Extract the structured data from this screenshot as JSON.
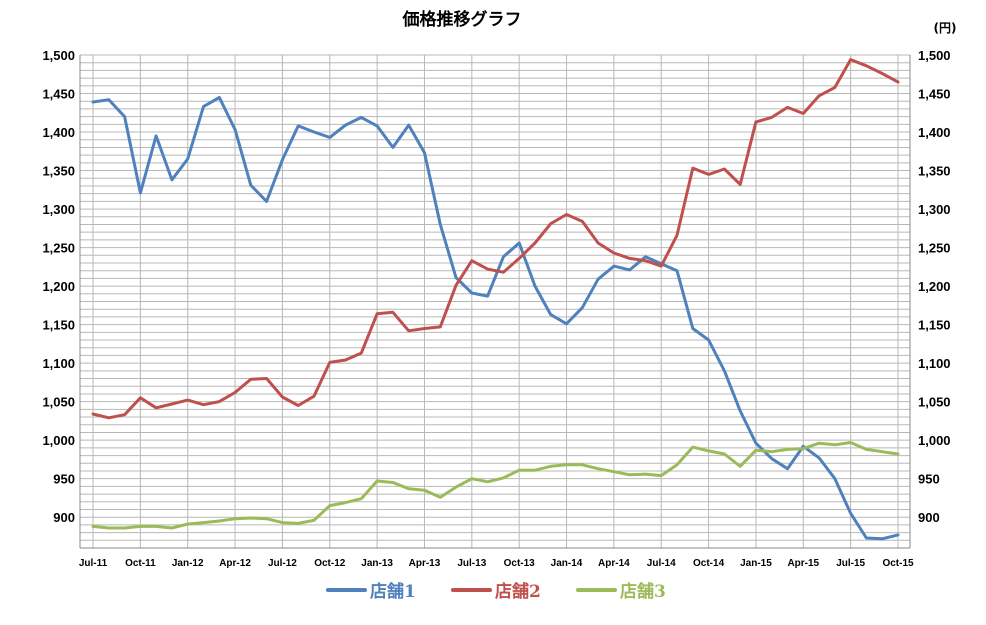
{
  "chart_data": {
    "type": "line",
    "title": "価格推移グラフ",
    "unit_label": "(円)",
    "xlabel": "",
    "ylabel": "",
    "ylim": [
      860,
      1500
    ],
    "y_ticks": [
      "900",
      "950",
      "1,000",
      "1,050",
      "1,100",
      "1,150",
      "1,200",
      "1,250",
      "1,300",
      "1,350",
      "1,400",
      "1,450",
      "1,500"
    ],
    "x_tick_labels": [
      "Jul-11",
      "Oct-11",
      "Jan-12",
      "Apr-12",
      "Jul-12",
      "Oct-12",
      "Jan-13",
      "Apr-13",
      "Jul-13",
      "Oct-13",
      "Jan-14",
      "Apr-14",
      "Jul-14",
      "Oct-14",
      "Jan-15",
      "Apr-15",
      "Jul-15",
      "Oct-15"
    ],
    "x": [
      "Jul-11",
      "Aug-11",
      "Sep-11",
      "Oct-11",
      "Nov-11",
      "Dec-11",
      "Jan-12",
      "Feb-12",
      "Mar-12",
      "Apr-12",
      "May-12",
      "Jun-12",
      "Jul-12",
      "Aug-12",
      "Sep-12",
      "Oct-12",
      "Nov-12",
      "Dec-12",
      "Jan-13",
      "Feb-13",
      "Mar-13",
      "Apr-13",
      "May-13",
      "Jun-13",
      "Jul-13",
      "Aug-13",
      "Sep-13",
      "Oct-13",
      "Nov-13",
      "Dec-13",
      "Jan-14",
      "Feb-14",
      "Mar-14",
      "Apr-14",
      "May-14",
      "Jun-14",
      "Jul-14",
      "Aug-14",
      "Sep-14",
      "Oct-14",
      "Nov-14",
      "Dec-14",
      "Jan-15",
      "Feb-15",
      "Mar-15",
      "Apr-15",
      "May-15",
      "Jun-15",
      "Jul-15",
      "Aug-15",
      "Sep-15",
      "Oct-15"
    ],
    "grid": true,
    "legend_position": "bottom",
    "series": [
      {
        "name": "店舗1",
        "color": "#4f81bd",
        "values": [
          1439,
          1442,
          1420,
          1321,
          1395,
          1338,
          1365,
          1433,
          1445,
          1403,
          1331,
          1310,
          1364,
          1408,
          1400,
          1393,
          1409,
          1419,
          1408,
          1380,
          1409,
          1373,
          1280,
          1211,
          1191,
          1187,
          1238,
          1256,
          1200,
          1163,
          1151,
          1172,
          1209,
          1226,
          1221,
          1238,
          1229,
          1220,
          1145,
          1130,
          1090,
          1038,
          996,
          976,
          963,
          992,
          977,
          950,
          905,
          873,
          872,
          877
        ]
      },
      {
        "name": "店舗2",
        "color": "#c0504d",
        "values": [
          1034,
          1029,
          1033,
          1055,
          1042,
          1047,
          1052,
          1046,
          1050,
          1062,
          1079,
          1080,
          1056,
          1045,
          1057,
          1101,
          1104,
          1113,
          1164,
          1166,
          1142,
          1145,
          1147,
          1201,
          1233,
          1222,
          1218,
          1236,
          1256,
          1281,
          1293,
          1284,
          1256,
          1243,
          1236,
          1233,
          1226,
          1266,
          1353,
          1345,
          1352,
          1332,
          1413,
          1419,
          1432,
          1424,
          1447,
          1458,
          1494,
          1486,
          1476,
          1465
        ]
      },
      {
        "name": "店舗3",
        "color": "#9bbb59",
        "values": [
          888,
          886,
          886,
          888,
          888,
          886,
          891,
          893,
          895,
          898,
          899,
          898,
          893,
          892,
          896,
          915,
          919,
          924,
          947,
          945,
          937,
          935,
          926,
          939,
          950,
          946,
          951,
          961,
          961,
          966,
          968,
          968,
          963,
          959,
          955,
          956,
          954,
          968,
          991,
          986,
          982,
          966,
          987,
          985,
          988,
          989,
          996,
          994,
          997,
          988,
          985,
          982
        ]
      }
    ]
  }
}
